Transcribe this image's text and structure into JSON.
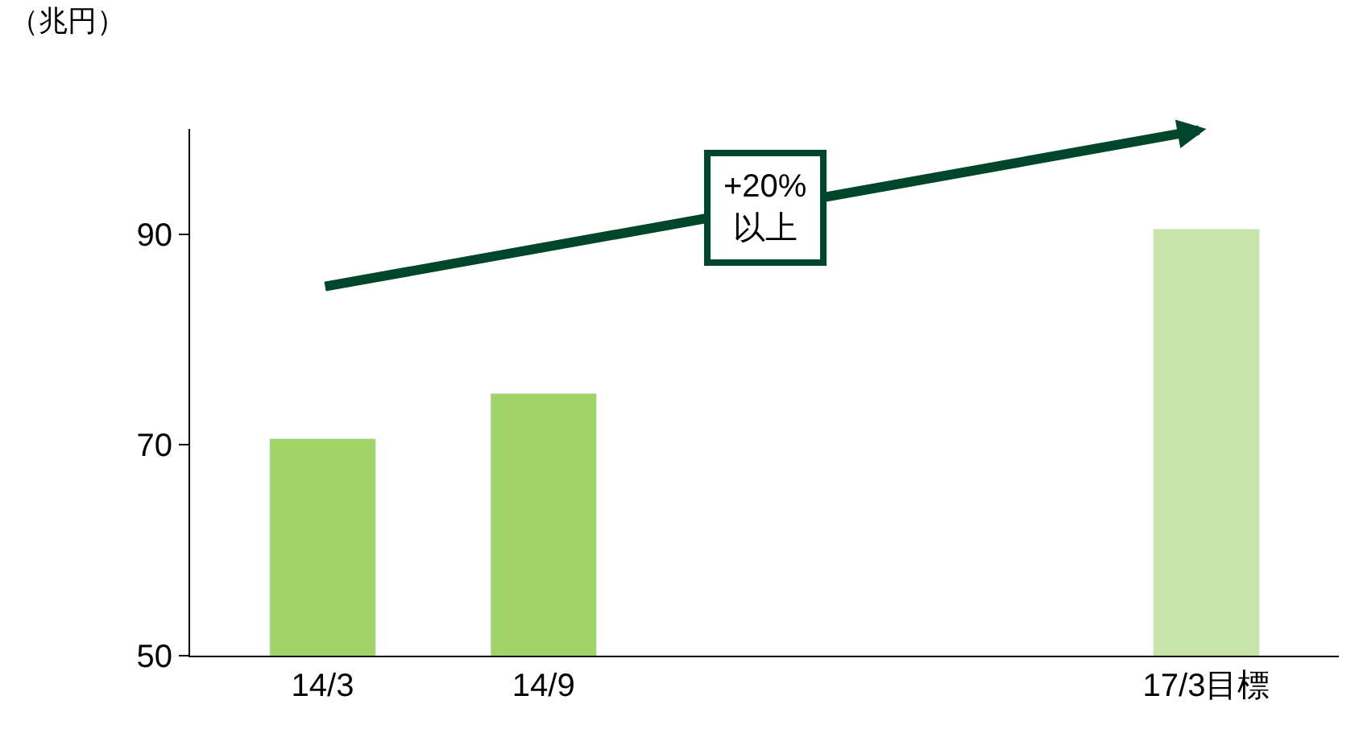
{
  "chart_data": {
    "type": "bar",
    "ylabel": "（兆円）",
    "categories": [
      "14/3",
      "14/9",
      null,
      null,
      "17/3目標"
    ],
    "values": [
      70.6,
      74.9,
      null,
      null,
      90.5
    ],
    "colors": [
      "#a0d468",
      "#a0d468",
      null,
      null,
      "#c8e4a8"
    ],
    "ylim": [
      50,
      100
    ],
    "yticks": [
      50,
      70,
      90
    ],
    "annotations": [
      "+20%\n以上"
    ]
  }
}
